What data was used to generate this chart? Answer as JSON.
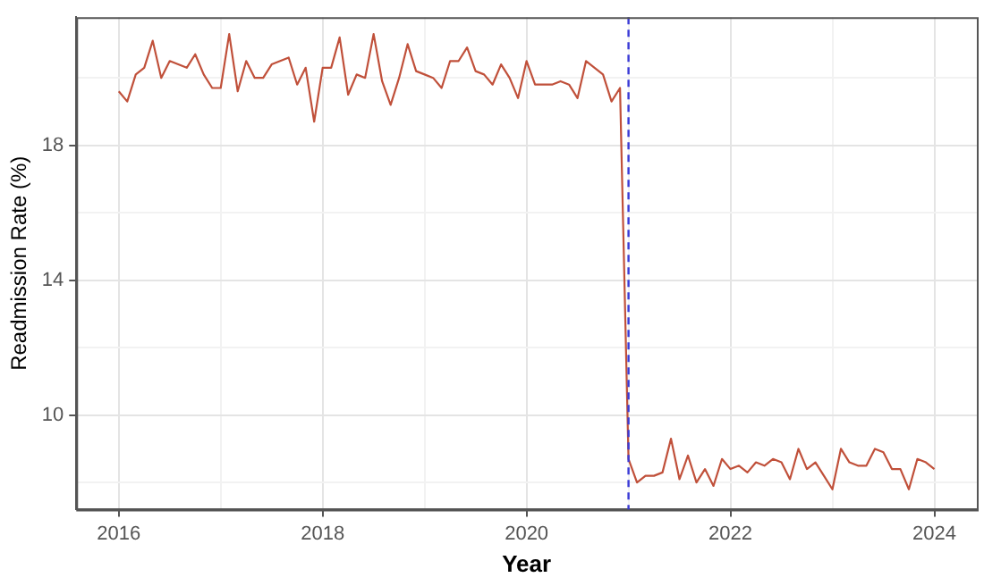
{
  "chart_data": {
    "type": "line",
    "xlabel": "Year",
    "ylabel": "Readmission Rate (%)",
    "x": [
      "2016-01",
      "2016-02",
      "2016-03",
      "2016-04",
      "2016-05",
      "2016-06",
      "2016-07",
      "2016-08",
      "2016-09",
      "2016-10",
      "2016-11",
      "2016-12",
      "2017-01",
      "2017-02",
      "2017-03",
      "2017-04",
      "2017-05",
      "2017-06",
      "2017-07",
      "2017-08",
      "2017-09",
      "2017-10",
      "2017-11",
      "2017-12",
      "2018-01",
      "2018-02",
      "2018-03",
      "2018-04",
      "2018-05",
      "2018-06",
      "2018-07",
      "2018-08",
      "2018-09",
      "2018-10",
      "2018-11",
      "2018-12",
      "2019-01",
      "2019-02",
      "2019-03",
      "2019-04",
      "2019-05",
      "2019-06",
      "2019-07",
      "2019-08",
      "2019-09",
      "2019-10",
      "2019-11",
      "2019-12",
      "2020-01",
      "2020-02",
      "2020-03",
      "2020-04",
      "2020-05",
      "2020-06",
      "2020-07",
      "2020-08",
      "2020-09",
      "2020-10",
      "2020-11",
      "2020-12",
      "2021-01",
      "2021-02",
      "2021-03",
      "2021-04",
      "2021-05",
      "2021-06",
      "2021-07",
      "2021-08",
      "2021-09",
      "2021-10",
      "2021-11",
      "2021-12",
      "2022-01",
      "2022-02",
      "2022-03",
      "2022-04",
      "2022-05",
      "2022-06",
      "2022-07",
      "2022-08",
      "2022-09",
      "2022-10",
      "2022-11",
      "2022-12",
      "2023-01",
      "2023-02",
      "2023-03",
      "2023-04",
      "2023-05",
      "2023-06",
      "2023-07",
      "2023-08",
      "2023-09",
      "2023-10",
      "2023-11",
      "2023-12",
      "2024-01"
    ],
    "series": [
      {
        "color": "#c0503a",
        "values": [
          19.6,
          19.3,
          20.1,
          20.3,
          21.1,
          20.0,
          20.5,
          20.4,
          20.3,
          20.7,
          20.1,
          19.7,
          19.7,
          21.3,
          19.6,
          20.5,
          20.0,
          20.0,
          20.4,
          20.5,
          20.6,
          19.8,
          20.3,
          18.7,
          20.3,
          20.3,
          21.2,
          19.5,
          20.1,
          20.0,
          21.3,
          19.9,
          19.2,
          20.0,
          21.0,
          20.2,
          20.1,
          20.0,
          19.7,
          20.5,
          20.5,
          20.9,
          20.2,
          20.1,
          19.8,
          20.4,
          20.0,
          19.4,
          20.5,
          19.8,
          19.8,
          19.8,
          19.9,
          19.8,
          19.4,
          20.5,
          20.3,
          20.1,
          19.3,
          19.7,
          8.7,
          8.0,
          8.2,
          8.2,
          8.3,
          9.3,
          8.1,
          8.8,
          8.0,
          8.4,
          7.9,
          8.7,
          8.4,
          8.5,
          8.3,
          8.6,
          8.5,
          8.7,
          8.6,
          8.1,
          9.0,
          8.4,
          8.6,
          8.2,
          7.8,
          9.0,
          8.6,
          8.5,
          8.5,
          9.0,
          8.9,
          8.4,
          8.4,
          7.8,
          8.7,
          8.6,
          8.4
        ]
      }
    ],
    "xlim": [
      "2015-08",
      "2024-06"
    ],
    "xticks": [
      "2016",
      {
        "value": "2017",
        "label": null
      },
      "2018",
      {
        "value": "2019",
        "label": null
      },
      "2020",
      {
        "value": "2021",
        "label": null
      },
      "2022",
      {
        "value": "2023",
        "label": null
      },
      "2024"
    ],
    "ylim": [
      7.2,
      21.8
    ],
    "yticks": [
      {
        "value": 8,
        "label": null
      },
      10,
      {
        "value": 12,
        "label": null
      },
      14,
      {
        "value": 16,
        "label": null
      },
      18,
      {
        "value": 20,
        "label": null
      }
    ],
    "ref_lines": [
      {
        "axis": "x",
        "value": "2021-01",
        "color": "#3b3bd6",
        "line_style": "dashed"
      }
    ],
    "grid": true,
    "legend": false,
    "marker": "none",
    "line_style": "solid"
  }
}
